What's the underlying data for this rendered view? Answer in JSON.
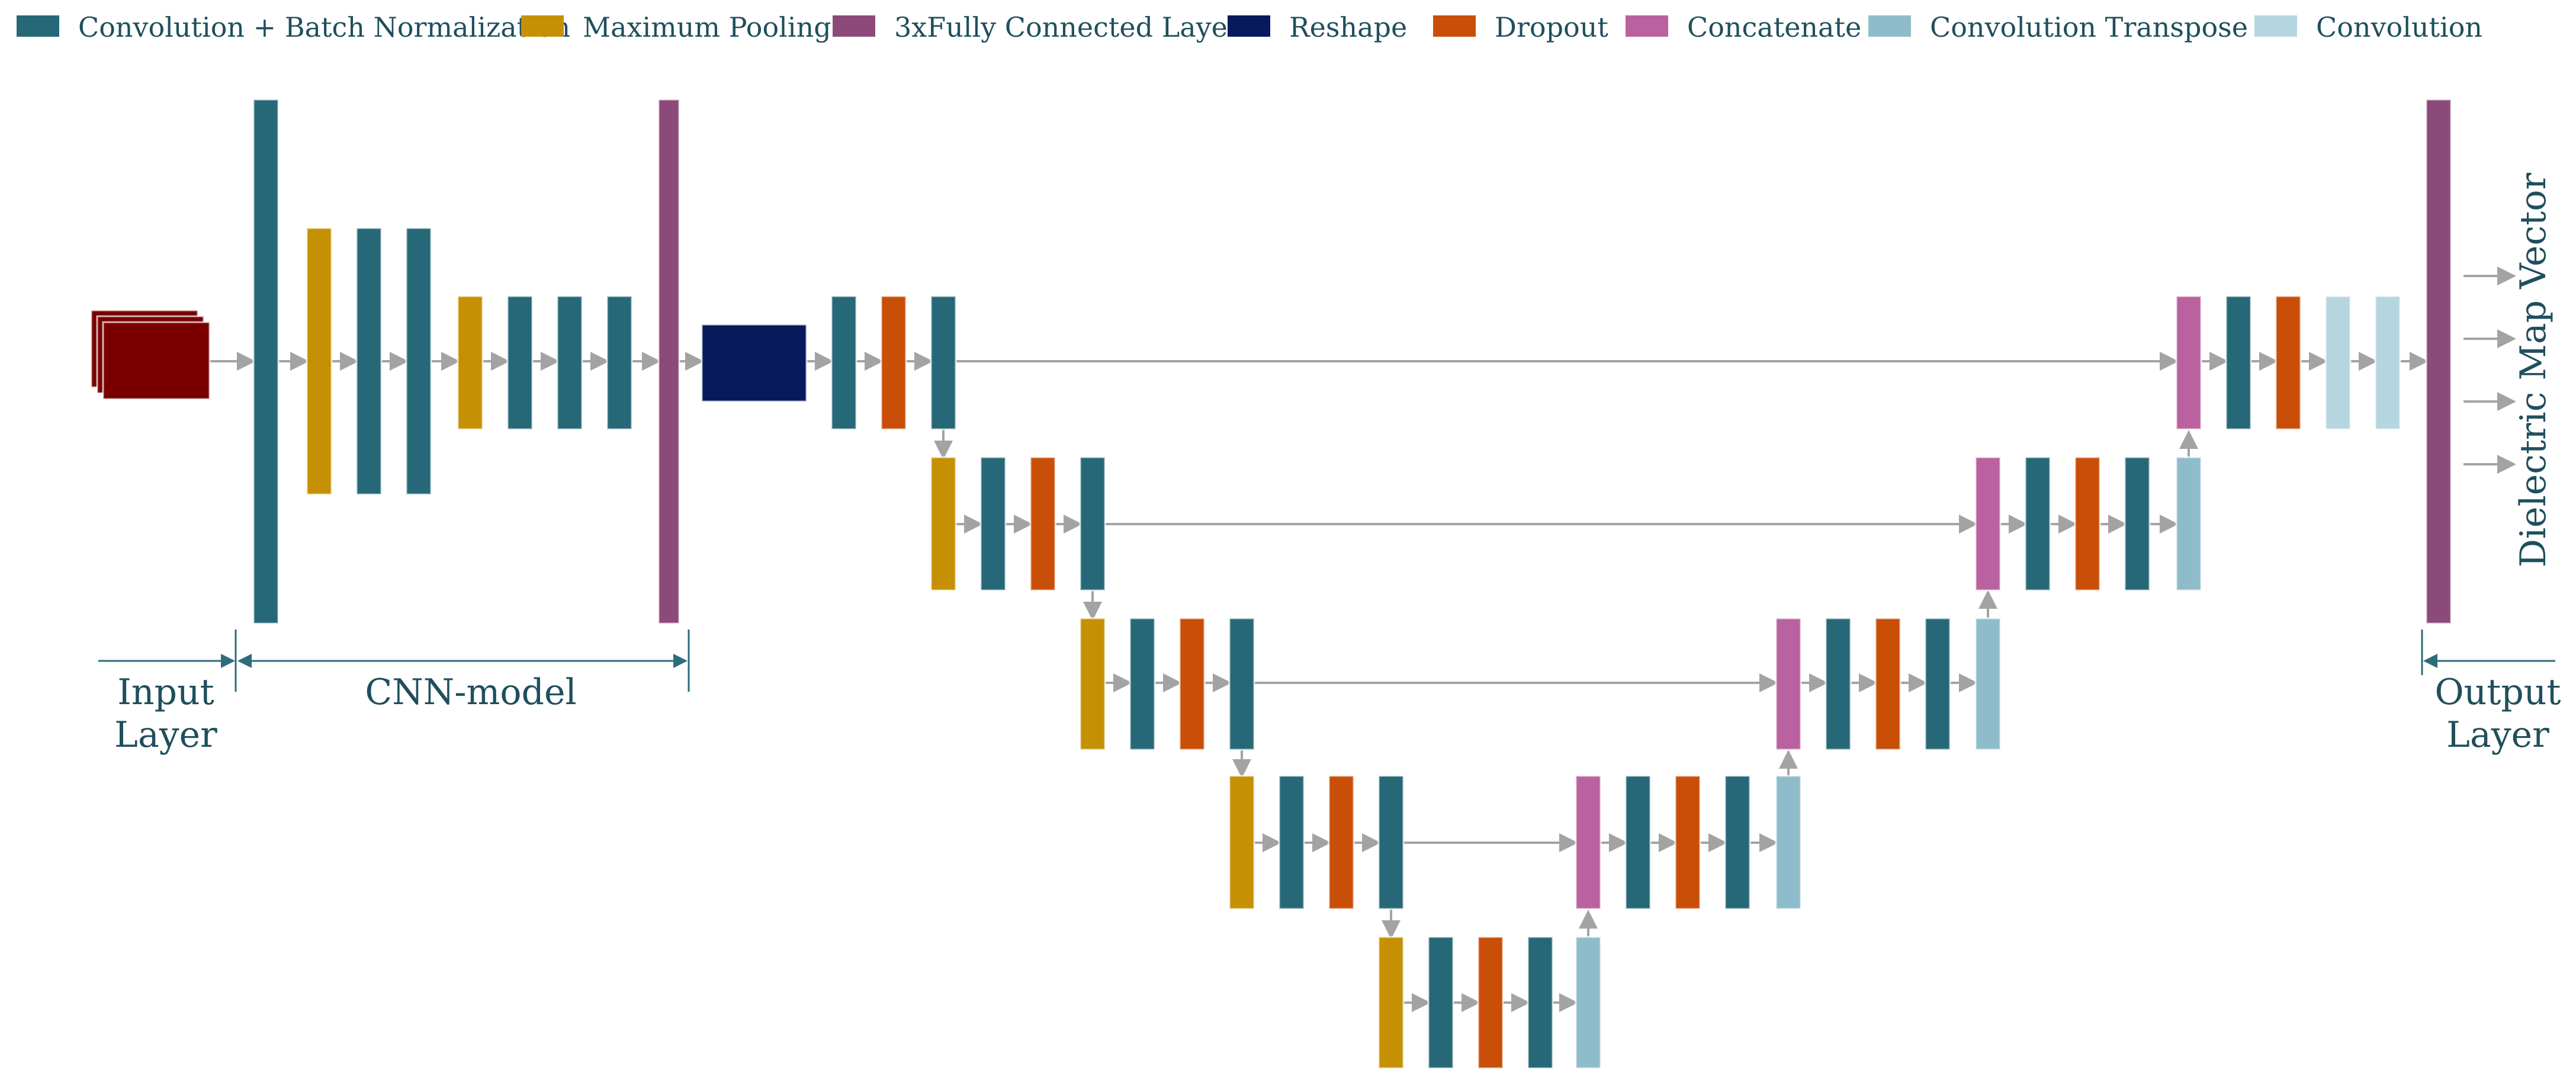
{
  "legend": [
    {
      "key": "conv_bn",
      "label": "Convolution + Batch Normalization"
    },
    {
      "key": "maxpool",
      "label": "Maximum Pooling"
    },
    {
      "key": "fc",
      "label": "3xFully Connected Layer"
    },
    {
      "key": "reshape",
      "label": "Reshape"
    },
    {
      "key": "dropout",
      "label": "Dropout"
    },
    {
      "key": "concat",
      "label": "Concatenate"
    },
    {
      "key": "conv_t",
      "label": "Convolution Transpose"
    },
    {
      "key": "conv",
      "label": "Convolution"
    }
  ],
  "colors": {
    "conv_bn": "#276878",
    "maxpool": "#c69004",
    "fc": "#8b4a7a",
    "reshape": "#061a5c",
    "dropout": "#c94e08",
    "concat": "#b9629f",
    "conv_t": "#8fbccb",
    "conv": "#b5d6e0",
    "input": "#7a0000",
    "arrow": "#a3a3a3",
    "bracket": "#2f6b7b",
    "label": "#1f4f5c"
  },
  "labels": {
    "input_line1": "Input",
    "input_line2": "Layer",
    "cnn_model": "CNN-model",
    "output_line1": "Output",
    "output_line2": "Layer",
    "output_vector": "Dielectric Map Vector"
  }
}
